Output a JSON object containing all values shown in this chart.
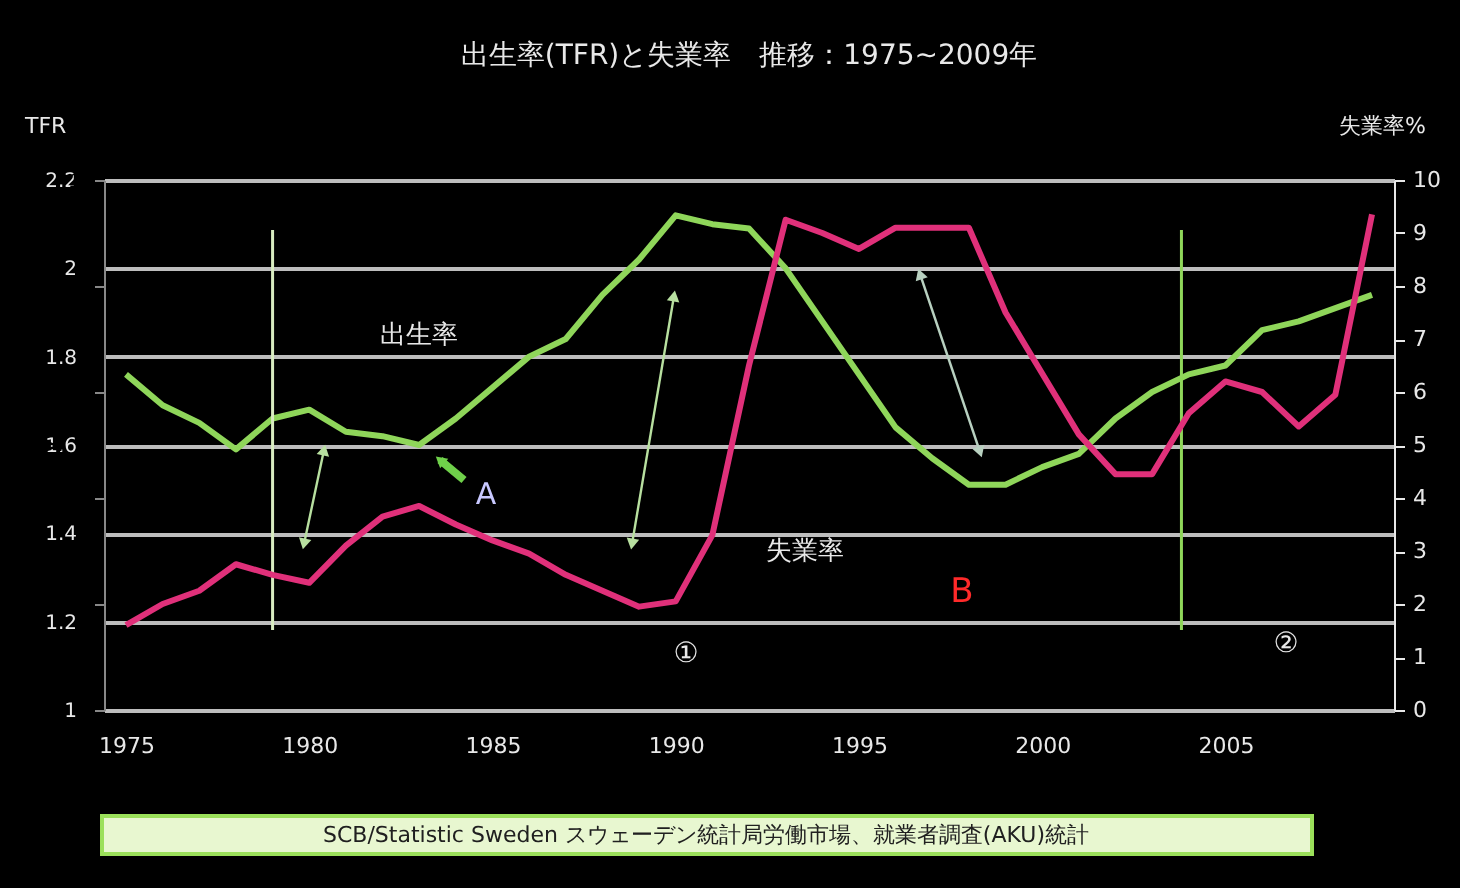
{
  "chart_data": {
    "type": "line",
    "title": "出生率(TFR)と失業率　推移：1975~2009年",
    "ylabel": "TFR",
    "y2label": "失業率%",
    "x": [
      1975,
      1976,
      1977,
      1978,
      1979,
      1980,
      1981,
      1982,
      1983,
      1984,
      1985,
      1986,
      1987,
      1988,
      1989,
      1990,
      1991,
      1992,
      1993,
      1994,
      1995,
      1996,
      1997,
      1998,
      1999,
      2000,
      2001,
      2002,
      2003,
      2004,
      2005,
      2006,
      2007,
      2008,
      2009
    ],
    "series": [
      {
        "name": "出生率",
        "color": "#8fd65a",
        "values": [
          1.76,
          1.69,
          1.65,
          1.59,
          1.66,
          1.68,
          1.63,
          1.62,
          1.6,
          1.66,
          1.73,
          1.8,
          1.84,
          1.94,
          2.02,
          2.12,
          2.1,
          2.09,
          2.0,
          1.88,
          1.76,
          1.64,
          1.57,
          1.51,
          1.51,
          1.55,
          1.58,
          1.66,
          1.72,
          1.76,
          1.78,
          1.86,
          1.88,
          1.91,
          1.94
        ]
      },
      {
        "name": "失業率",
        "color": "#e0307a",
        "axis": "y2",
        "values": [
          1.6,
          2.0,
          2.25,
          2.75,
          2.55,
          2.4,
          3.1,
          3.65,
          3.85,
          3.5,
          3.2,
          2.95,
          2.55,
          2.25,
          1.95,
          2.05,
          3.3,
          6.5,
          9.25,
          9.0,
          8.7,
          9.1,
          9.1,
          9.1,
          7.5,
          6.35,
          5.2,
          4.45,
          4.45,
          5.6,
          6.2,
          6.0,
          5.35,
          5.95,
          9.35
        ]
      }
    ],
    "xlim": [
      1974.4,
      2009.6
    ],
    "xticks": [
      1975,
      1980,
      1985,
      1990,
      1995,
      2000,
      2005
    ],
    "ylim": [
      1,
      2.2
    ],
    "yticks": [
      1,
      1.2,
      1.4,
      1.6,
      1.8,
      2,
      2.2
    ],
    "y2lim": [
      0,
      10
    ],
    "y2ticks": [
      0,
      1,
      2,
      3,
      4,
      5,
      6,
      7,
      8,
      9,
      10
    ],
    "ref_lines": [
      {
        "axis": "x",
        "value": 1979.0,
        "color": "#d8ecc0"
      },
      {
        "axis": "x",
        "value": 2003.8,
        "color": "#8fd65a"
      }
    ],
    "annotations": [
      "A",
      "B",
      "①",
      "②",
      "SCB/Statistic Sweden スウェーデン統計局労働市場、就業者調査(AKU)統計"
    ],
    "grid": "y",
    "marker": "none",
    "line_style": "solid"
  }
}
